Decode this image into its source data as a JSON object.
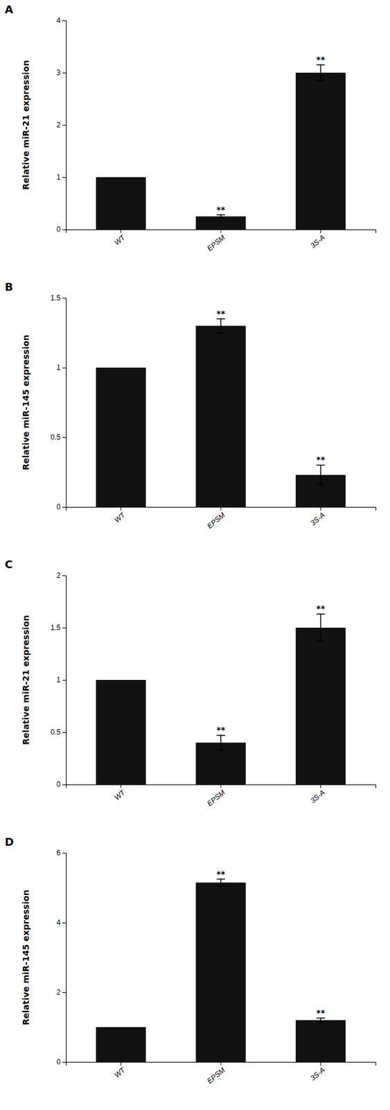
{
  "chart_data": [
    {
      "type": "bar",
      "title": "A",
      "ylabel": "Relative miR-21 expression",
      "categories": [
        "WT",
        "EPSM",
        "3S-A"
      ],
      "values": [
        1.0,
        0.25,
        3.0
      ],
      "errors": [
        0.0,
        0.03,
        0.15
      ],
      "color": "#111111",
      "ylim": [
        0,
        4
      ],
      "yticks": [
        0,
        1,
        2,
        3,
        4
      ],
      "grid": false,
      "annotations": [
        {
          "text": "**",
          "x": "EPSM"
        },
        {
          "text": "**",
          "x": "3S-A"
        }
      ]
    },
    {
      "type": "bar",
      "title": "B",
      "ylabel": "Relative miR-145 expression",
      "categories": [
        "WT",
        "EPSM",
        "3S-A"
      ],
      "values": [
        1.0,
        1.3,
        0.23
      ],
      "errors": [
        0.0,
        0.05,
        0.07
      ],
      "color": "#111111",
      "ylim": [
        0,
        1.5
      ],
      "yticks": [
        0,
        0.5,
        1,
        1.5
      ],
      "grid": false,
      "annotations": [
        {
          "text": "**",
          "x": "EPSM"
        },
        {
          "text": "**",
          "x": "3S-A"
        }
      ]
    },
    {
      "type": "bar",
      "title": "C",
      "ylabel": "Relative miR-21 expression",
      "categories": [
        "WT",
        "EPSM",
        "3S-A"
      ],
      "values": [
        1.0,
        0.4,
        1.5
      ],
      "errors": [
        0.0,
        0.07,
        0.13
      ],
      "color": "#111111",
      "ylim": [
        0,
        2.0
      ],
      "yticks": [
        0,
        0.5,
        1,
        1.5,
        2
      ],
      "grid": false,
      "annotations": [
        {
          "text": "**",
          "x": "EPSM"
        },
        {
          "text": "**",
          "x": "3S-A"
        }
      ]
    },
    {
      "type": "bar",
      "title": "D",
      "ylabel": "Relative miR-145 expression",
      "categories": [
        "WT",
        "EPSM",
        "3S-A"
      ],
      "values": [
        1.0,
        5.15,
        1.2
      ],
      "errors": [
        0.0,
        0.1,
        0.06
      ],
      "color": "#111111",
      "ylim": [
        0,
        6
      ],
      "yticks": [
        0,
        2,
        4,
        6
      ],
      "grid": false,
      "annotations": [
        {
          "text": "**",
          "x": "EPSM"
        },
        {
          "text": "**",
          "x": "3S-A"
        }
      ]
    }
  ]
}
